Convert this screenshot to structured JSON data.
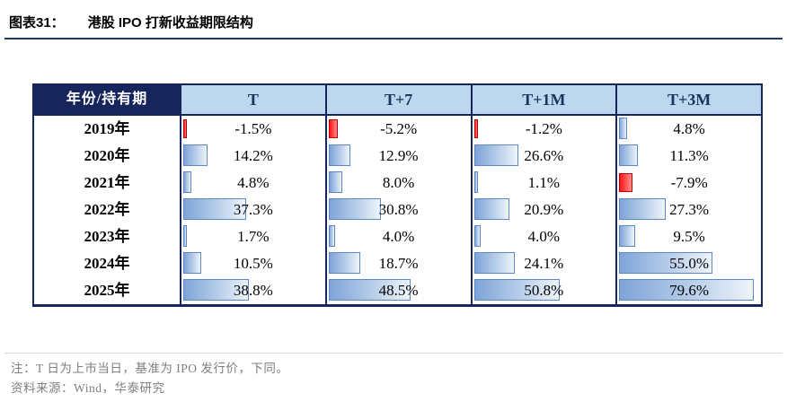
{
  "header": {
    "figure_label": "图表31：",
    "figure_name": "港股 IPO 打新收益期限结构"
  },
  "chart_data": {
    "type": "table",
    "title": "港股 IPO 打新收益期限结构",
    "corner_label": "年份/持有期",
    "columns": [
      "T",
      "T+7",
      "T+1M",
      "T+3M"
    ],
    "rows": [
      {
        "year": "2019年",
        "values": [
          -1.5,
          -5.2,
          -1.2,
          4.8
        ]
      },
      {
        "year": "2020年",
        "values": [
          14.2,
          12.9,
          26.6,
          11.3
        ]
      },
      {
        "year": "2021年",
        "values": [
          4.8,
          8.0,
          1.1,
          -7.9
        ]
      },
      {
        "year": "2022年",
        "values": [
          37.3,
          30.8,
          20.9,
          27.3
        ]
      },
      {
        "year": "2023年",
        "values": [
          1.7,
          4.0,
          4.0,
          9.5
        ]
      },
      {
        "year": "2024年",
        "values": [
          10.5,
          18.7,
          24.1,
          55.0
        ]
      },
      {
        "year": "2025年",
        "values": [
          38.8,
          48.5,
          50.8,
          79.6
        ]
      }
    ],
    "value_suffix": "%",
    "value_decimals": 1,
    "bar_axis": "left",
    "bar_scale_max": 85,
    "positive_bar_fill": "#7EA4D8",
    "positive_bar_border": "#5B87C8",
    "negative_bar_fill": "#FF1414",
    "negative_bar_border": "#C00000"
  },
  "footer": {
    "note": "注：T 日为上市当日，基准为 IPO 发行价，下同。",
    "source": "资料来源：Wind，华泰研究"
  },
  "colors": {
    "header_bg": "#16265C",
    "header_light_bg": "#BDD7EE",
    "header_text": "#17365D",
    "table_border": "#16265C",
    "title_rule": "#1F3864",
    "note_text": "#7F7F7F",
    "note_rule": "#D9D9D9"
  }
}
